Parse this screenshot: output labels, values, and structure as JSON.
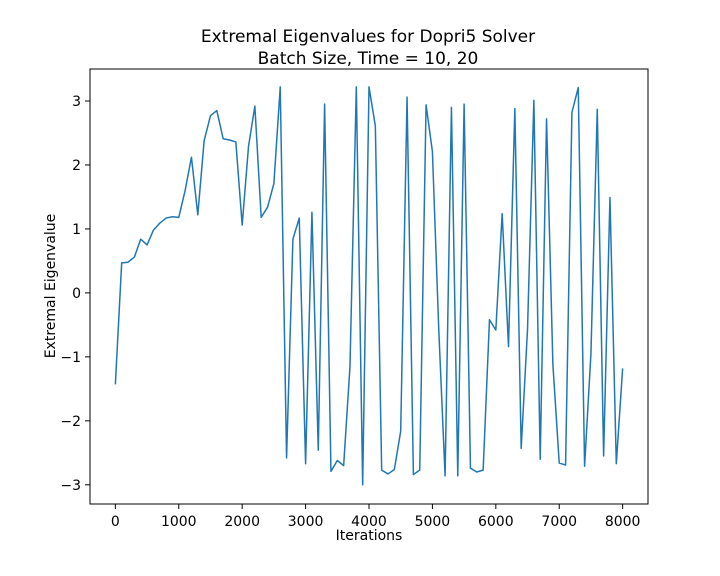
{
  "chart_data": {
    "type": "line",
    "title_line1": "Extremal Eigenvalues for Dopri5 Solver",
    "title_line2": "Batch Size, Time = 10, 20",
    "xlabel": "Iterations",
    "ylabel": "Extremal Eigenvalue",
    "xlim": [
      -400,
      8400
    ],
    "ylim": [
      -3.3,
      3.5
    ],
    "xticks": [
      0,
      1000,
      2000,
      3000,
      4000,
      5000,
      6000,
      7000,
      8000
    ],
    "xtick_labels": [
      "0",
      "1000",
      "2000",
      "3000",
      "4000",
      "5000",
      "6000",
      "7000",
      "8000"
    ],
    "yticks": [
      -3,
      -2,
      -1,
      0,
      1,
      2,
      3
    ],
    "ytick_labels": [
      "−3",
      "−2",
      "−1",
      "0",
      "1",
      "2",
      "3"
    ],
    "grid": false,
    "series": [
      {
        "color": "#1f77b4",
        "x": [
          0,
          100,
          200,
          300,
          400,
          500,
          600,
          700,
          800,
          900,
          1000,
          1100,
          1200,
          1300,
          1400,
          1500,
          1600,
          1700,
          1800,
          1900,
          2000,
          2100,
          2200,
          2300,
          2400,
          2500,
          2600,
          2700,
          2800,
          2900,
          3000,
          3100,
          3200,
          3300,
          3400,
          3500,
          3600,
          3700,
          3800,
          3900,
          4000,
          4100,
          4200,
          4300,
          4400,
          4500,
          4600,
          4700,
          4800,
          4900,
          5000,
          5100,
          5200,
          5300,
          5400,
          5500,
          5600,
          5700,
          5800,
          5900,
          6000,
          6100,
          6200,
          6300,
          6400,
          6500,
          6600,
          6700,
          6800,
          6900,
          7000,
          7100,
          7200,
          7300,
          7400,
          7500,
          7600,
          7700,
          7800,
          7900,
          8000
        ],
        "y": [
          -1.43,
          0.47,
          0.48,
          0.56,
          0.84,
          0.75,
          0.98,
          1.09,
          1.17,
          1.19,
          1.18,
          1.6,
          2.12,
          1.22,
          2.38,
          2.77,
          2.85,
          2.41,
          2.39,
          2.36,
          1.06,
          2.29,
          2.92,
          1.18,
          1.34,
          1.71,
          3.22,
          -2.58,
          0.84,
          1.17,
          -2.67,
          1.26,
          -2.46,
          2.95,
          -2.79,
          -2.62,
          -2.7,
          -1.15,
          3.22,
          -3.0,
          3.22,
          2.61,
          -2.77,
          -2.83,
          -2.76,
          -2.16,
          3.06,
          -2.84,
          -2.77,
          2.94,
          2.21,
          -0.57,
          -2.86,
          2.9,
          -2.86,
          2.95,
          -2.74,
          -2.8,
          -2.77,
          -0.42,
          -0.58,
          1.24,
          -0.84,
          2.88,
          -2.43,
          -0.57,
          3.01,
          -2.6,
          2.72,
          -1.12,
          -2.66,
          -2.69,
          2.82,
          3.21,
          -2.71,
          -0.95,
          2.87,
          -2.55,
          1.49,
          -2.67,
          -1.18
        ]
      }
    ]
  }
}
